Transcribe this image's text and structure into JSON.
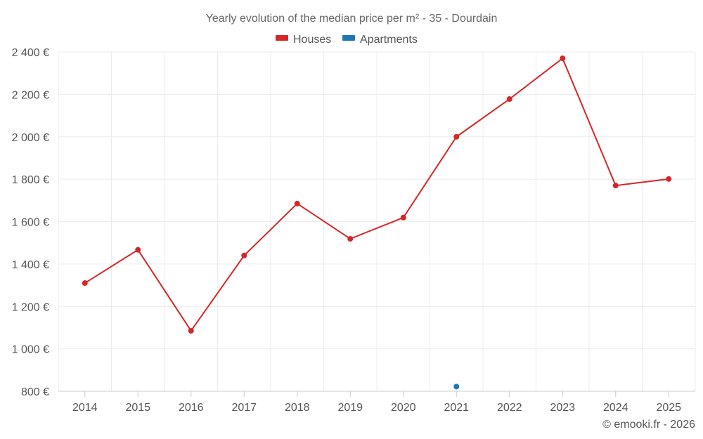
{
  "chart_data": {
    "type": "line",
    "title": "Yearly evolution of the median price per m² - 35 - Dourdain",
    "categories": [
      "2014",
      "2015",
      "2016",
      "2017",
      "2018",
      "2019",
      "2020",
      "2021",
      "2022",
      "2023",
      "2024",
      "2025"
    ],
    "series": [
      {
        "name": "Houses",
        "color": "#d62728",
        "values": [
          1310,
          1467,
          1085,
          1440,
          1685,
          1519,
          1619,
          2000,
          2178,
          2370,
          1770,
          1801
        ]
      },
      {
        "name": "Apartments",
        "color": "#1f77b4",
        "values": [
          null,
          null,
          null,
          null,
          null,
          null,
          null,
          822,
          null,
          null,
          null,
          null
        ]
      }
    ],
    "y_ticks": [
      800,
      1000,
      1200,
      1400,
      1600,
      1800,
      2000,
      2200,
      2400
    ],
    "y_tick_labels": [
      "800 €",
      "1 000 €",
      "1 200 €",
      "1 400 €",
      "1 600 €",
      "1 800 €",
      "2 000 €",
      "2 200 €",
      "2 400 €"
    ],
    "ylim": [
      800,
      2400
    ],
    "xlabel": "",
    "ylabel": "",
    "grid": true,
    "legend_position": "top-center",
    "credit": "© emooki.fr - 2026"
  }
}
